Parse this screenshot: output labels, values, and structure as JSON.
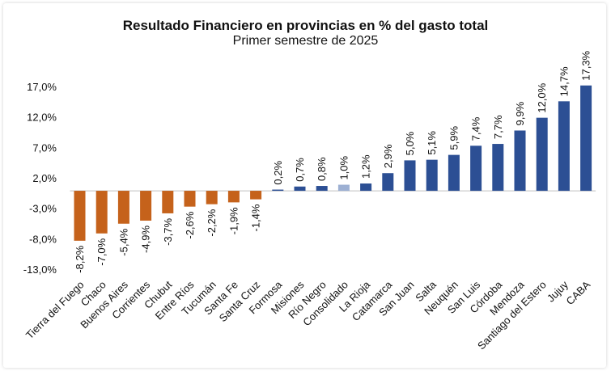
{
  "chart_data": {
    "type": "bar",
    "title": "Resultado Financiero en provincias en % del gasto total",
    "subtitle": "Primer semestre de 2025",
    "xlabel": "",
    "ylabel": "",
    "ylim": [
      -13.0,
      17.0
    ],
    "yticks": [
      "17,0%",
      "12,0%",
      "7,0%",
      "2,0%",
      "-3,0%",
      "-8,0%",
      "-13,0%"
    ],
    "ytick_values": [
      17,
      12,
      7,
      2,
      -3,
      -8,
      -13
    ],
    "grid": false,
    "categories": [
      "Tierra del Fuego",
      "Chaco",
      "Buenos Aires",
      "Corrientes",
      "Chubut",
      "Entre Ríos",
      "Tucumán",
      "Santa Fe",
      "Santa Cruz",
      "Formosa",
      "Misiones",
      "Río Negro",
      "Consolidado",
      "La Rioja",
      "Catamarca",
      "San Juan",
      "Salta",
      "Neuquén",
      "San Luis",
      "Córdoba",
      "Mendoza",
      "Santiago del Estero",
      "Jujuy",
      "CABA"
    ],
    "values": [
      -8.2,
      -7.0,
      -5.4,
      -4.9,
      -3.7,
      -2.6,
      -2.2,
      -1.9,
      -1.4,
      0.2,
      0.7,
      0.8,
      1.0,
      1.2,
      2.9,
      5.0,
      5.1,
      5.9,
      7.4,
      7.7,
      9.9,
      12.0,
      14.7,
      17.3
    ],
    "value_labels": [
      "-8,2%",
      "-7,0%",
      "-5,4%",
      "-4,9%",
      "-3,7%",
      "-2,6%",
      "-2,2%",
      "-1,9%",
      "-1,4%",
      "0,2%",
      "0,7%",
      "0,8%",
      "1,0%",
      "1,2%",
      "2,9%",
      "5,0%",
      "5,1%",
      "5,9%",
      "7,4%",
      "7,7%",
      "9,9%",
      "12,0%",
      "14,7%",
      "17,3%"
    ],
    "colors": {
      "negative": "#C5621B",
      "positive": "#2C4F94",
      "highlight": "#9DB0D3",
      "zero_line": "#BFBFBF"
    },
    "highlight_category": "Consolidado"
  }
}
